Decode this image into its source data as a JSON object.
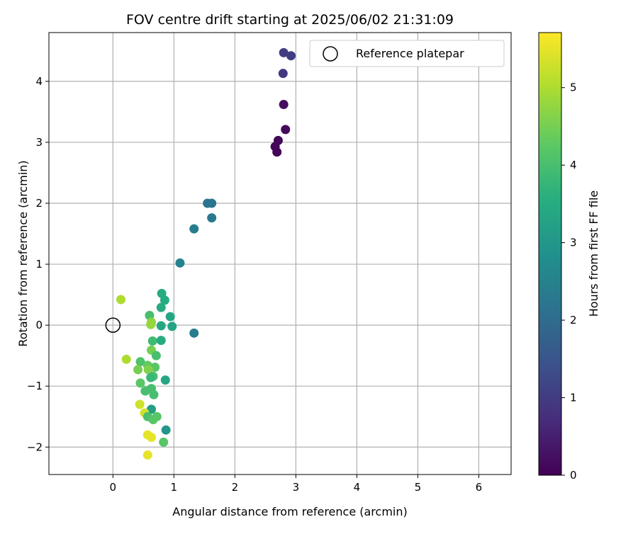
{
  "chart_data": {
    "type": "scatter",
    "title": "FOV centre drift starting at 2025/06/02 21:31:09",
    "xlabel": "Angular distance from reference (arcmin)",
    "ylabel": "Rotation from reference (arcmin)",
    "xlim": [
      -1.05,
      6.53
    ],
    "ylim": [
      -2.45,
      4.8
    ],
    "xticks": [
      0,
      1,
      2,
      3,
      4,
      5,
      6
    ],
    "yticks": [
      -2,
      -1,
      0,
      1,
      2,
      3,
      4
    ],
    "grid": true,
    "legend": {
      "label": "Reference platepar",
      "placement": "top-right"
    },
    "reference": {
      "x": 0,
      "y": 0
    },
    "colorbar": {
      "label": "Hours from first FF file",
      "range": [
        0,
        5.71
      ],
      "ticks": [
        0,
        1,
        2,
        3,
        4,
        5
      ],
      "colormap": "viridis"
    },
    "points": [
      {
        "x": 2.8,
        "y": 4.47,
        "h": 1.0
      },
      {
        "x": 2.92,
        "y": 4.42,
        "h": 1.0
      },
      {
        "x": 2.79,
        "y": 4.13,
        "h": 0.9
      },
      {
        "x": 2.8,
        "y": 3.62,
        "h": 0.2
      },
      {
        "x": 2.83,
        "y": 3.21,
        "h": 0.15
      },
      {
        "x": 2.71,
        "y": 3.03,
        "h": 0.1
      },
      {
        "x": 2.66,
        "y": 2.93,
        "h": 0.08
      },
      {
        "x": 2.69,
        "y": 2.84,
        "h": 0.05
      },
      {
        "x": 1.55,
        "y": 2.0,
        "h": 2.2
      },
      {
        "x": 1.62,
        "y": 2.0,
        "h": 2.2
      },
      {
        "x": 1.62,
        "y": 1.76,
        "h": 2.3
      },
      {
        "x": 1.33,
        "y": 1.58,
        "h": 2.4
      },
      {
        "x": 1.1,
        "y": 1.02,
        "h": 2.5
      },
      {
        "x": 1.33,
        "y": -0.13,
        "h": 2.4
      },
      {
        "x": 0.13,
        "y": 0.42,
        "h": 5.0
      },
      {
        "x": 0.8,
        "y": 0.52,
        "h": 3.5
      },
      {
        "x": 0.85,
        "y": 0.41,
        "h": 3.5
      },
      {
        "x": 0.79,
        "y": 0.29,
        "h": 3.5
      },
      {
        "x": 0.6,
        "y": 0.16,
        "h": 4.0
      },
      {
        "x": 0.94,
        "y": 0.14,
        "h": 3.4
      },
      {
        "x": 0.63,
        "y": 0.05,
        "h": 4.7
      },
      {
        "x": 0.62,
        "y": 0.01,
        "h": 4.8
      },
      {
        "x": 0.79,
        "y": -0.01,
        "h": 3.4
      },
      {
        "x": 0.97,
        "y": -0.02,
        "h": 3.3
      },
      {
        "x": 0.65,
        "y": -0.26,
        "h": 3.9
      },
      {
        "x": 0.79,
        "y": -0.25,
        "h": 3.5
      },
      {
        "x": 0.63,
        "y": -0.41,
        "h": 4.5
      },
      {
        "x": 0.71,
        "y": -0.5,
        "h": 4.0
      },
      {
        "x": 0.22,
        "y": -0.56,
        "h": 5.0
      },
      {
        "x": 0.45,
        "y": -0.6,
        "h": 4.1
      },
      {
        "x": 0.41,
        "y": -0.73,
        "h": 4.5
      },
      {
        "x": 0.57,
        "y": -0.66,
        "h": 4.3
      },
      {
        "x": 0.69,
        "y": -0.69,
        "h": 4.2
      },
      {
        "x": 0.58,
        "y": -0.73,
        "h": 4.6
      },
      {
        "x": 0.66,
        "y": -0.84,
        "h": 4.0
      },
      {
        "x": 0.62,
        "y": -0.86,
        "h": 3.8
      },
      {
        "x": 0.86,
        "y": -0.9,
        "h": 3.4
      },
      {
        "x": 0.45,
        "y": -0.95,
        "h": 4.2
      },
      {
        "x": 0.53,
        "y": -1.08,
        "h": 4.0
      },
      {
        "x": 0.63,
        "y": -1.04,
        "h": 4.0
      },
      {
        "x": 0.67,
        "y": -1.14,
        "h": 4.0
      },
      {
        "x": 0.63,
        "y": -1.38,
        "h": 3.2
      },
      {
        "x": 0.44,
        "y": -1.3,
        "h": 5.3
      },
      {
        "x": 0.52,
        "y": -1.44,
        "h": 5.3
      },
      {
        "x": 0.57,
        "y": -1.5,
        "h": 4.0
      },
      {
        "x": 0.72,
        "y": -1.5,
        "h": 4.2
      },
      {
        "x": 0.66,
        "y": -1.55,
        "h": 4.2
      },
      {
        "x": 0.87,
        "y": -1.72,
        "h": 3.0
      },
      {
        "x": 0.57,
        "y": -1.8,
        "h": 5.5
      },
      {
        "x": 0.63,
        "y": -1.84,
        "h": 5.5
      },
      {
        "x": 0.83,
        "y": -1.92,
        "h": 4.2
      },
      {
        "x": 0.57,
        "y": -2.13,
        "h": 5.5
      }
    ]
  }
}
